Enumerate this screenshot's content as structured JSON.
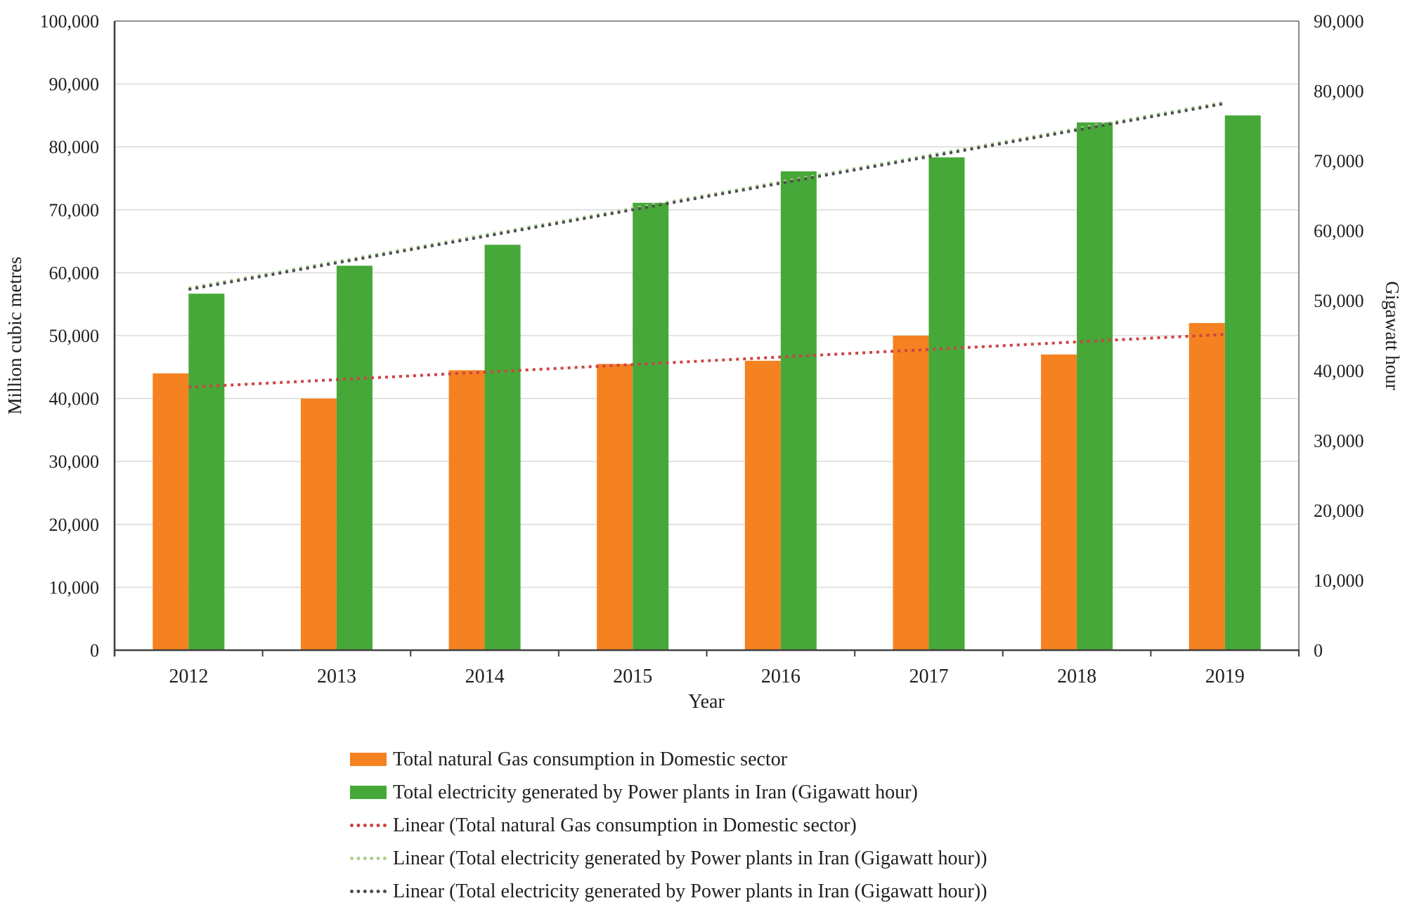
{
  "page": {
    "background": "#ffffff"
  },
  "chart_data": {
    "type": "bar",
    "categories": [
      "2012",
      "2013",
      "2014",
      "2015",
      "2016",
      "2017",
      "2018",
      "2019"
    ],
    "series": [
      {
        "name": "Total natural Gas consumption in Domestic sector",
        "axis": "left",
        "color": "#F58220",
        "values": [
          44000,
          40000,
          44500,
          45500,
          46000,
          50000,
          47000,
          52000
        ]
      },
      {
        "name": "Total electricity generated by Power plants in Iran (Gigawatt hour)",
        "axis": "right",
        "color": "#46A838",
        "values": [
          51000,
          55000,
          58000,
          64000,
          68500,
          70500,
          75500,
          76500
        ]
      }
    ],
    "trendlines": [
      {
        "name": "Linear (Total natural Gas consumption in Domestic sector)",
        "axis": "left",
        "color": "#CC4444",
        "start": 41800,
        "end": 50200
      },
      {
        "name": "Linear (Total electricity generated by Power plants in Iran (Gigawatt hour))",
        "axis": "right",
        "color": "#A9D18E",
        "start": 51600,
        "end": 78200
      },
      {
        "name": "Linear (Total electricity generated by Power plants in Iran (Gigawatt hour))",
        "axis": "right",
        "color": "#4D4D4D",
        "start": 51600,
        "end": 78200
      }
    ],
    "x_axis": {
      "title": "Year",
      "tick_labels": [
        "2012",
        "2013",
        "2014",
        "2015",
        "2016",
        "2017",
        "2018",
        "2019"
      ]
    },
    "left_axis": {
      "title": "Million cubic metres",
      "min": 0,
      "max": 100000,
      "step": 10000,
      "tick_labels": [
        "0",
        "10,000",
        "20,000",
        "30,000",
        "40,000",
        "50,000",
        "60,000",
        "70,000",
        "80,000",
        "90,000",
        "100,000"
      ]
    },
    "right_axis": {
      "title": "Gigawatt hour",
      "min": 0,
      "max": 90000,
      "step": 10000,
      "tick_labels": [
        "0",
        "10,000",
        "20,000",
        "30,000",
        "40,000",
        "50,000",
        "60,000",
        "70,000",
        "80,000",
        "90,000"
      ]
    },
    "grid": true,
    "grid_color": "#DCDCDC",
    "axis_line_color": "#404040",
    "frame_color": "#7f7f7f",
    "legend_position": "bottom-left"
  },
  "legend": {
    "items": [
      {
        "label": "Total natural Gas consumption in Domestic sector",
        "type": "bar",
        "color": "#F58220"
      },
      {
        "label": "Total electricity generated by Power plants in Iran (Gigawatt hour)",
        "type": "bar",
        "color": "#46A838"
      },
      {
        "label": "Linear (Total natural Gas consumption in Domestic sector)",
        "type": "dotted",
        "color": "#CC4444"
      },
      {
        "label": "Linear (Total electricity generated by Power plants in Iran (Gigawatt hour))",
        "type": "dotted",
        "color": "#A9D18E"
      },
      {
        "label": "Linear (Total electricity generated by Power plants in Iran (Gigawatt hour))",
        "type": "dotted",
        "color": "#4D4D4D"
      }
    ]
  }
}
